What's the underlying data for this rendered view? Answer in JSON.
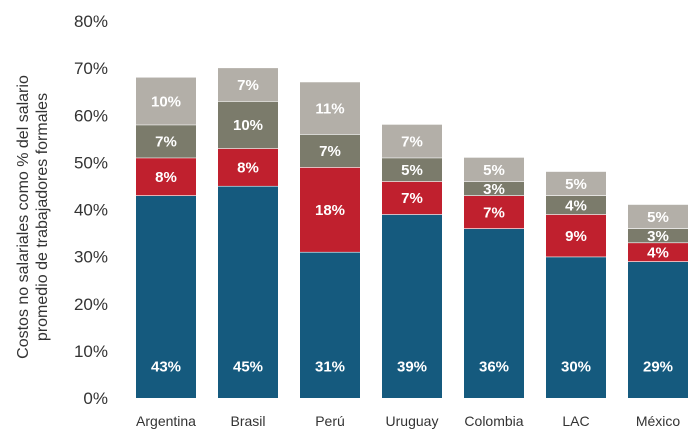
{
  "chart_data": {
    "type": "bar",
    "stacked": true,
    "categories": [
      "Argentina",
      "Brasil",
      "Perú",
      "Uruguay",
      "Colombia",
      "LAC",
      "México"
    ],
    "series": [
      {
        "values": [
          43,
          45,
          31,
          39,
          36,
          30,
          29
        ],
        "color": "#155a7e",
        "labels": [
          "43%",
          "45%",
          "31%",
          "39%",
          "36%",
          "30%",
          "29%"
        ]
      },
      {
        "values": [
          8,
          8,
          18,
          7,
          7,
          9,
          4
        ],
        "color": "#c0202e",
        "labels": [
          "8%",
          "8%",
          "18%",
          "7%",
          "7%",
          "9%",
          "4%"
        ]
      },
      {
        "values": [
          7,
          10,
          7,
          5,
          3,
          4,
          3
        ],
        "color": "#7b7b6b",
        "labels": [
          "7%",
          "10%",
          "7%",
          "5%",
          "3%",
          "4%",
          "3%"
        ]
      },
      {
        "values": [
          10,
          7,
          11,
          7,
          5,
          5,
          5
        ],
        "color": "#b3afa8",
        "labels": [
          "10%",
          "7%",
          "11%",
          "7%",
          "5%",
          "5%",
          "5%"
        ]
      }
    ],
    "ylabel_line1": "Costos no salariales como % del salario",
    "ylabel_line2": "promedio de trabajadores formales",
    "yticks": [
      "0%",
      "10%",
      "20%",
      "30%",
      "40%",
      "50%",
      "60%",
      "70%",
      "80%"
    ],
    "ylim": [
      0,
      80
    ],
    "grid": false,
    "legend": "none"
  }
}
